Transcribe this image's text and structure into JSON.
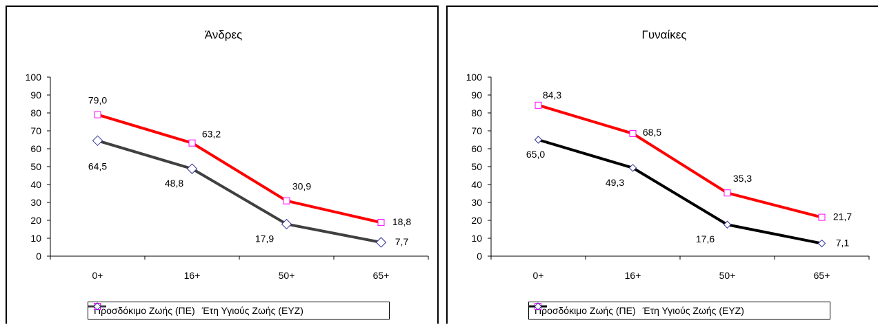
{
  "chart_data": [
    {
      "type": "line",
      "title": "Άνδρες",
      "categories": [
        "0+",
        "16+",
        "50+",
        "65+"
      ],
      "ylim": [
        0,
        100
      ],
      "yticks": [
        0,
        10,
        20,
        30,
        40,
        50,
        60,
        70,
        80,
        90,
        100
      ],
      "grid": false,
      "legend": "bottom",
      "series": [
        {
          "name": "Προσδόκιμο Ζωής (ΠΕ)",
          "values": [
            79.0,
            63.2,
            30.9,
            18.8
          ],
          "labels": [
            "79,0",
            "63,2",
            "30,9",
            "18,8"
          ],
          "color": "#ff0000",
          "marker": "square",
          "marker_color": "#ff00ff"
        },
        {
          "name": "Έτη Υγιούς Ζωής (ΕΥΖ)",
          "values": [
            64.5,
            48.8,
            17.9,
            7.7
          ],
          "labels": [
            "64,5",
            "48,8",
            "17,9",
            "7,7"
          ],
          "color": "#404040",
          "marker": "diamond",
          "marker_color": "#333399"
        }
      ]
    },
    {
      "type": "line",
      "title": "Γυναίκες",
      "categories": [
        "0+",
        "16+",
        "50+",
        "65+"
      ],
      "ylim": [
        0,
        100
      ],
      "yticks": [
        0,
        10,
        20,
        30,
        40,
        50,
        60,
        70,
        80,
        90,
        100
      ],
      "grid": false,
      "legend": "bottom",
      "series": [
        {
          "name": "Προσδόκιμο Ζωής (ΠΕ)",
          "values": [
            84.3,
            68.5,
            35.3,
            21.7
          ],
          "labels": [
            "84,3",
            "68,5",
            "35,3",
            "21,7"
          ],
          "color": "#ff0000",
          "marker": "square",
          "marker_color": "#ff00ff"
        },
        {
          "name": "Έτη Υγιούς Ζωής (ΕΥΖ)",
          "values": [
            65.0,
            49.3,
            17.6,
            7.1
          ],
          "labels": [
            "65,0",
            "49,3",
            "17,6",
            "7,1"
          ],
          "color": "#000000",
          "marker": "diamond",
          "marker_color": "#333399"
        }
      ]
    }
  ]
}
